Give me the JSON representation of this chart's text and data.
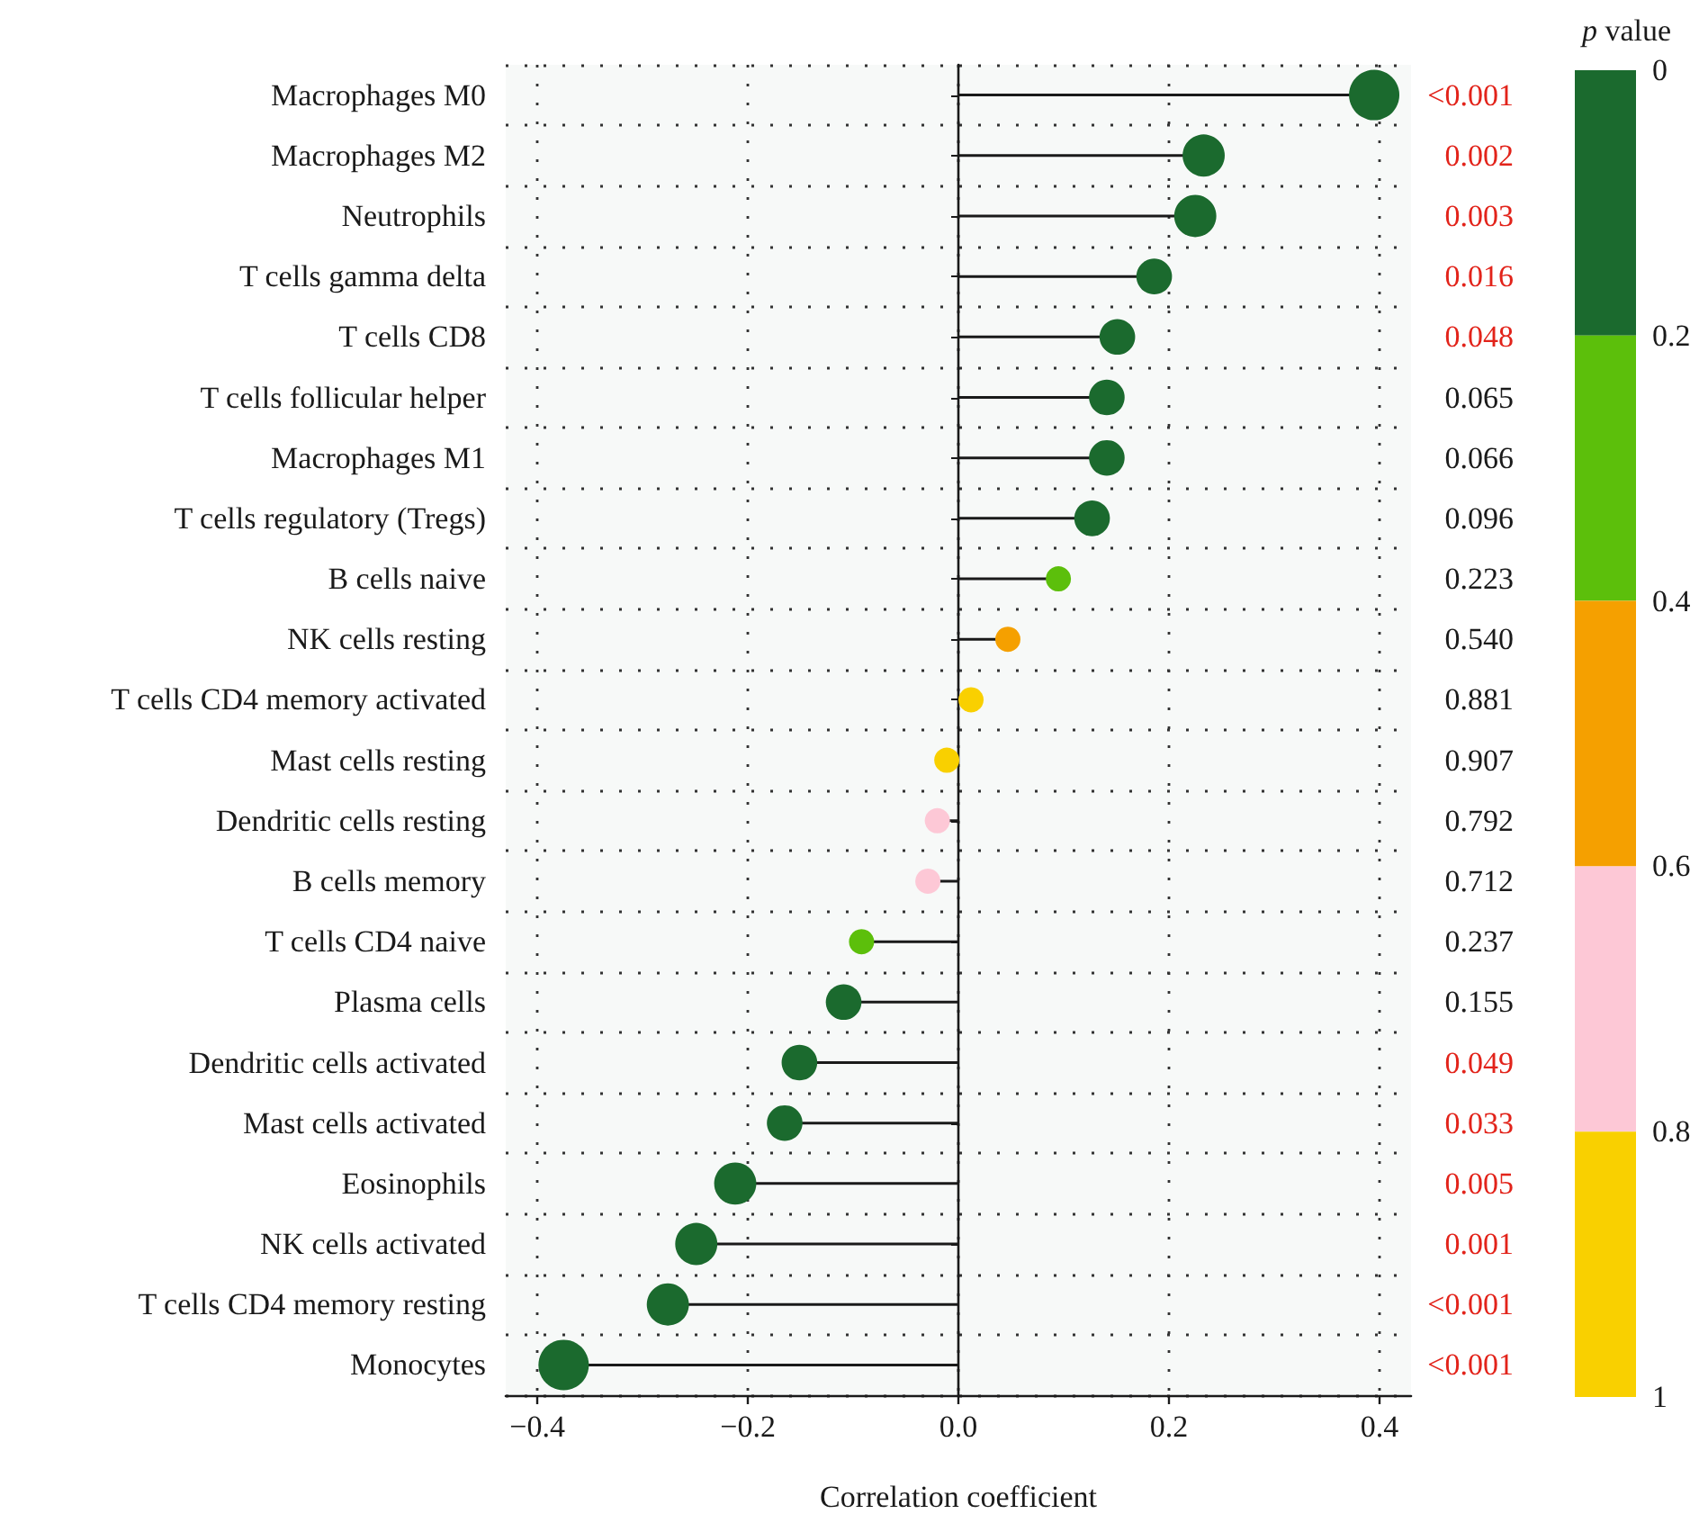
{
  "chart_data": {
    "type": "lollipop",
    "orientation": "horizontal",
    "marker": "circle",
    "grid": true,
    "categories": [
      "Macrophages M0",
      "Macrophages M2",
      "Neutrophils",
      "T cells gamma delta",
      "T cells CD8",
      "T cells follicular helper",
      "Macrophages M1",
      "T cells regulatory (Tregs)",
      "B cells naive",
      "NK cells resting",
      "T cells CD4 memory activated",
      "Mast cells resting",
      "Dendritic cells resting",
      "B cells memory",
      "T cells CD4 naive",
      "Plasma cells",
      "Dendritic cells activated",
      "Mast cells activated",
      "Eosinophils",
      "NK cells activated",
      "T cells CD4 memory resting",
      "Monocytes"
    ],
    "values": [
      0.395,
      0.233,
      0.225,
      0.186,
      0.151,
      0.141,
      0.141,
      0.127,
      0.095,
      0.047,
      0.012,
      -0.011,
      -0.02,
      -0.029,
      -0.092,
      -0.109,
      -0.151,
      -0.165,
      -0.212,
      -0.249,
      -0.276,
      -0.375
    ],
    "sizes": [
      1,
      0.7,
      0.7,
      0.5,
      0.5,
      0.5,
      0.5,
      0.5,
      0.25,
      0.25,
      0.25,
      0.25,
      0.25,
      0.25,
      0.25,
      0.5,
      0.5,
      0.5,
      0.7,
      0.7,
      0.7,
      1
    ],
    "colors": [
      "#1b6a2e",
      "#1b6a2e",
      "#1b6a2e",
      "#1b6a2e",
      "#1b6a2e",
      "#1b6a2e",
      "#1b6a2e",
      "#1b6a2e",
      "#5cbf0b",
      "#f5a000",
      "#f9d000",
      "#f9d000",
      "#fdc8d6",
      "#fdc8d6",
      "#5cbf0b",
      "#1b6a2e",
      "#1b6a2e",
      "#1b6a2e",
      "#1b6a2e",
      "#1b6a2e",
      "#1b6a2e",
      "#1b6a2e"
    ],
    "y2_categories": [
      "<0.001",
      "0.002",
      "0.003",
      "0.016",
      "0.048",
      "0.065",
      "0.066",
      "0.096",
      "0.223",
      "0.540",
      "0.881",
      "0.907",
      "0.792",
      "0.712",
      "0.237",
      "0.155",
      "0.049",
      "0.033",
      "0.005",
      "0.001",
      "<0.001",
      "<0.001"
    ],
    "xlabel": "Correlation coefficient",
    "xlim": [
      -0.43,
      0.43
    ],
    "xticks": [
      {
        "value": -0.4,
        "label": "−0.4"
      },
      {
        "value": -0.2,
        "label": "−0.2"
      },
      {
        "value": 0,
        "label": "0.0"
      },
      0.2,
      0.4
    ],
    "clabel": "p value",
    "clim": [
      0,
      1
    ],
    "cticks": [
      0,
      0.2,
      0.4,
      0.6,
      0.8,
      1
    ]
  }
}
